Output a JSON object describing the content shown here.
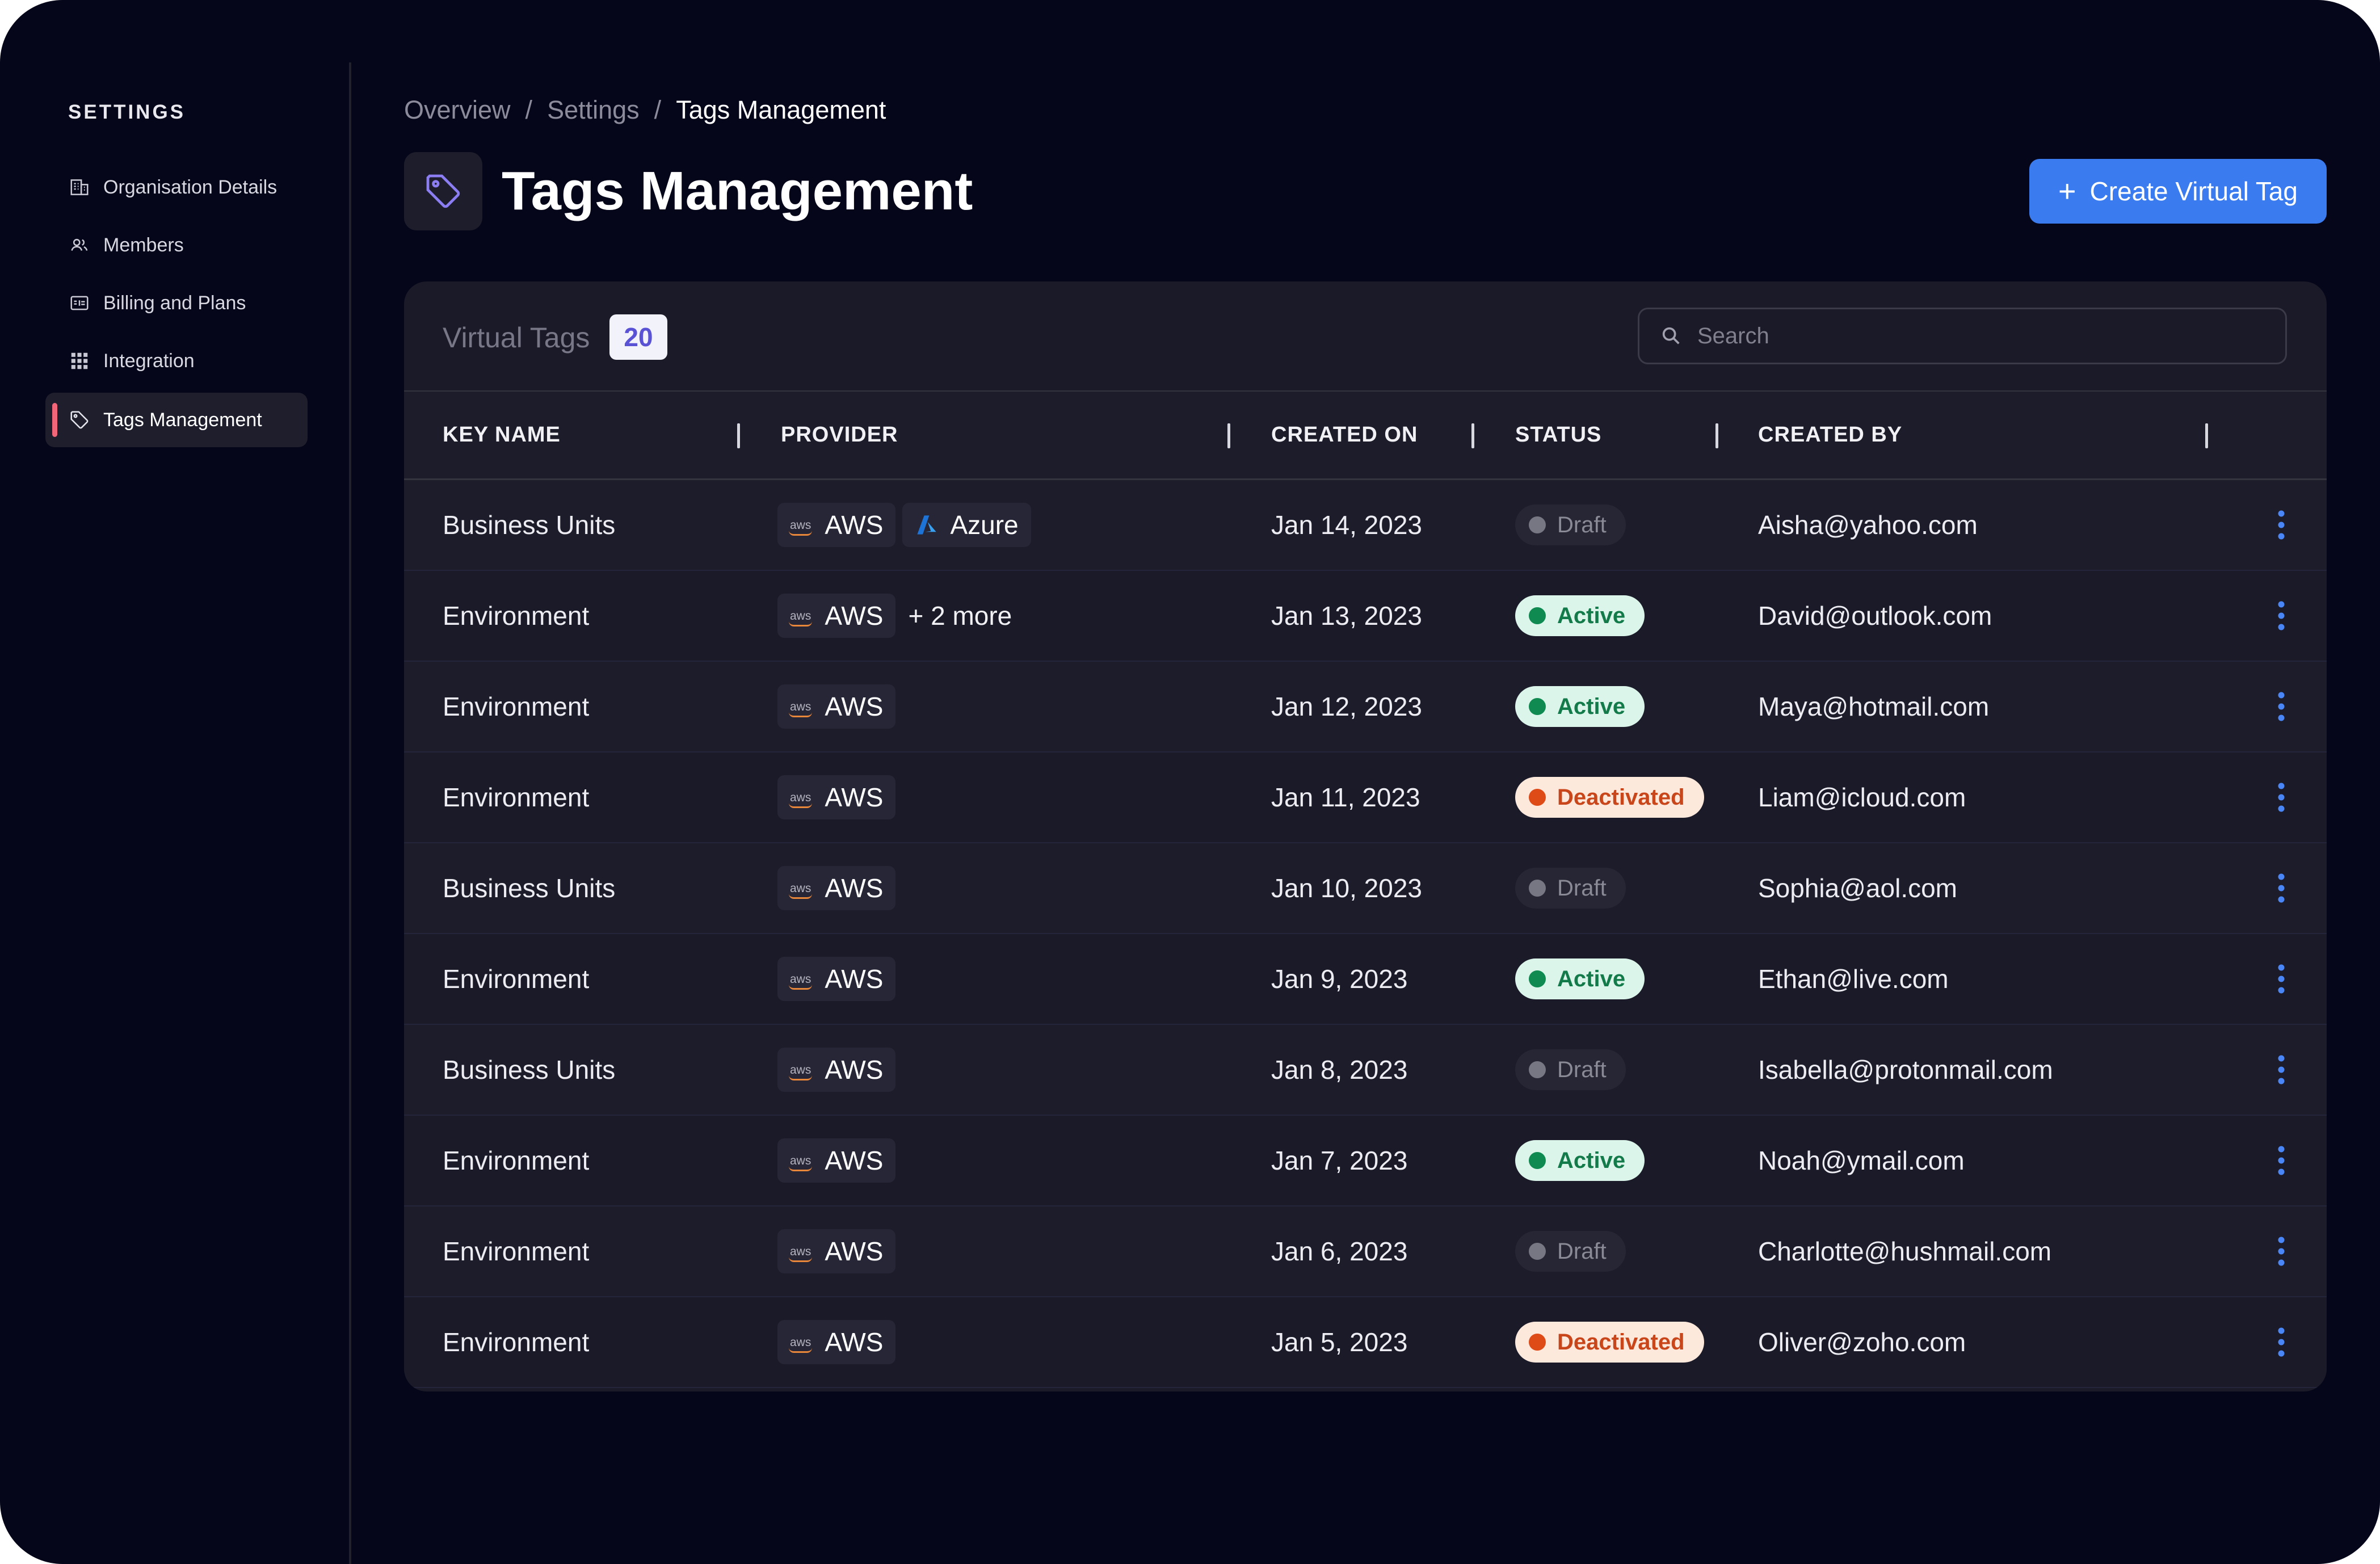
{
  "sidebar": {
    "title": "SETTINGS",
    "items": [
      {
        "label": "Organisation Details",
        "icon": "building-icon"
      },
      {
        "label": "Members",
        "icon": "users-icon"
      },
      {
        "label": "Billing and Plans",
        "icon": "billing-icon"
      },
      {
        "label": "Integration",
        "icon": "grid-icon"
      },
      {
        "label": "Tags Management",
        "icon": "tag-icon",
        "active": true
      }
    ]
  },
  "breadcrumb": {
    "items": [
      "Overview",
      "Settings",
      "Tags Management"
    ],
    "separator": "/"
  },
  "header": {
    "title": "Tags Management",
    "create_button": "Create Virtual Tag"
  },
  "card": {
    "title": "Virtual Tags",
    "count": "20",
    "search_placeholder": "Search"
  },
  "table": {
    "columns": [
      "KEY NAME",
      "PROVIDER",
      "CREATED ON",
      "STATUS",
      "CREATED BY"
    ],
    "rows": [
      {
        "key": "Business Units",
        "providers": [
          "AWS",
          "Azure"
        ],
        "more": "",
        "created_on": "Jan 14, 2023",
        "status": "Draft",
        "created_by": "Aisha@yahoo.com"
      },
      {
        "key": "Environment",
        "providers": [
          "AWS"
        ],
        "more": "+ 2 more",
        "created_on": "Jan 13, 2023",
        "status": "Active",
        "created_by": "David@outlook.com"
      },
      {
        "key": "Environment",
        "providers": [
          "AWS"
        ],
        "more": "",
        "created_on": "Jan 12, 2023",
        "status": "Active",
        "created_by": "Maya@hotmail.com"
      },
      {
        "key": "Environment",
        "providers": [
          "AWS"
        ],
        "more": "",
        "created_on": "Jan 11, 2023",
        "status": "Deactivated",
        "created_by": "Liam@icloud.com"
      },
      {
        "key": "Business Units",
        "providers": [
          "AWS"
        ],
        "more": "",
        "created_on": "Jan 10, 2023",
        "status": "Draft",
        "created_by": "Sophia@aol.com"
      },
      {
        "key": "Environment",
        "providers": [
          "AWS"
        ],
        "more": "",
        "created_on": "Jan 9, 2023",
        "status": "Active",
        "created_by": "Ethan@live.com"
      },
      {
        "key": "Business Units",
        "providers": [
          "AWS"
        ],
        "more": "",
        "created_on": "Jan 8, 2023",
        "status": "Draft",
        "created_by": "Isabella@protonmail.com"
      },
      {
        "key": "Environment",
        "providers": [
          "AWS"
        ],
        "more": "",
        "created_on": "Jan 7, 2023",
        "status": "Active",
        "created_by": "Noah@ymail.com"
      },
      {
        "key": "Environment",
        "providers": [
          "AWS"
        ],
        "more": "",
        "created_on": "Jan 6, 2023",
        "status": "Draft",
        "created_by": "Charlotte@hushmail.com"
      },
      {
        "key": "Environment",
        "providers": [
          "AWS"
        ],
        "more": "",
        "created_on": "Jan 5, 2023",
        "status": "Deactivated",
        "created_by": "Oliver@zoho.com"
      }
    ]
  },
  "provider_labels": {
    "aws_logo": "aws"
  },
  "colors": {
    "background": "#06061a",
    "card": "#1a1a28",
    "accent": "#3a7cf0",
    "sidebar_active_marker": "#f2667a",
    "status_active": "#0f8a51",
    "status_deactivated": "#df4b16",
    "status_draft": "#777784",
    "kebab": "#4a86f5"
  }
}
